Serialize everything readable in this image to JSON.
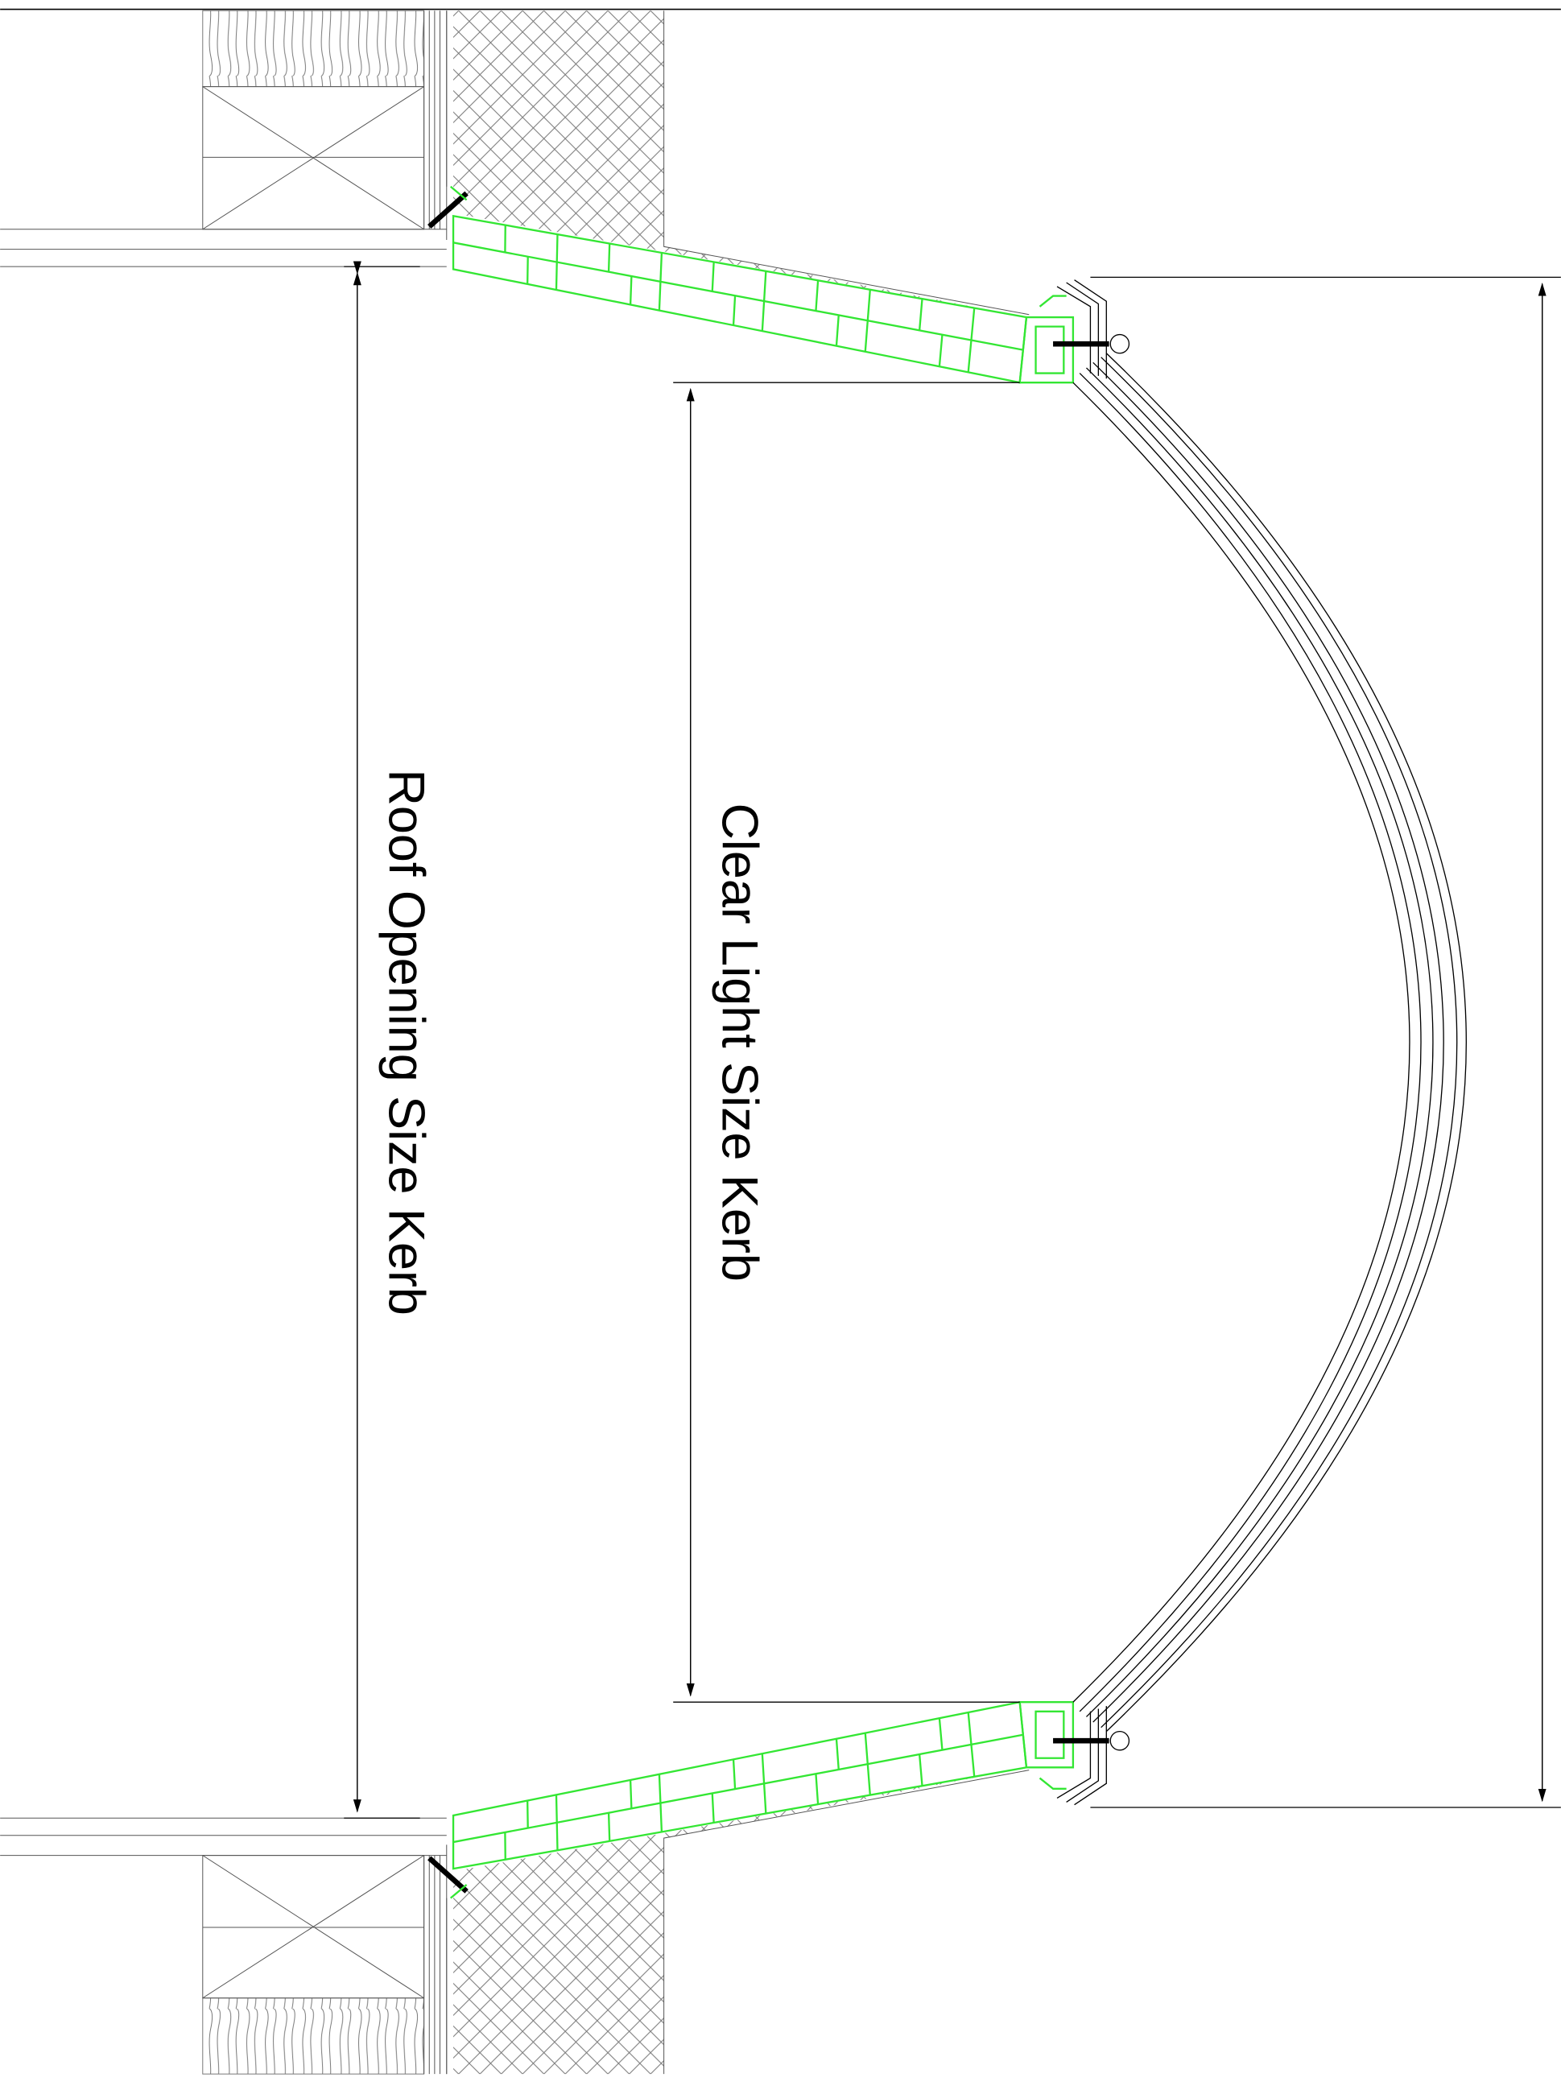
{
  "dimensions": {
    "roof_opening": "Roof Opening Size Kerb",
    "clear_light": "Clear Light Size Kerb"
  }
}
